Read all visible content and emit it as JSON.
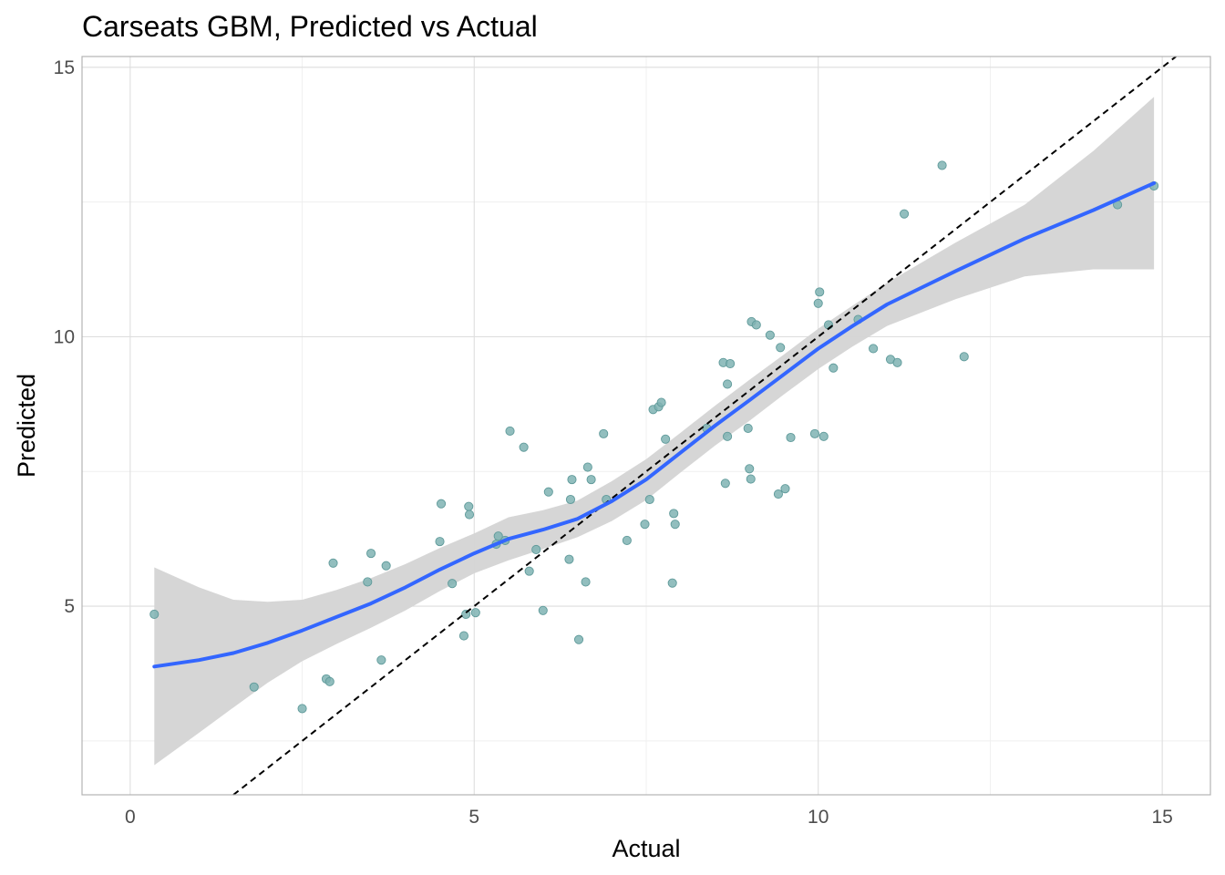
{
  "chart_data": {
    "type": "scatter",
    "title": "Carseats GBM, Predicted vs Actual",
    "xlabel": "Actual",
    "ylabel": "Predicted",
    "xlim": [
      -0.7,
      15.7
    ],
    "ylim": [
      1.5,
      15.2
    ],
    "x_ticks": [
      0,
      5,
      10,
      15
    ],
    "y_ticks": [
      5,
      10,
      15
    ],
    "x_minor_ticks": [
      2.5,
      7.5,
      12.5
    ],
    "y_minor_ticks": [
      2.5,
      7.5,
      12.5
    ],
    "grid": true,
    "legend": "none",
    "colors": {
      "point": "#7fb3b3",
      "point_edge": "#5f9a9a",
      "smooth": "#3366ff",
      "band": "#d4d4d4",
      "reference": "#000000",
      "grid": "#dedede",
      "panel_border": "#b3b3b3"
    },
    "reference_line": {
      "slope": 1,
      "intercept": 0,
      "style": "dashed"
    },
    "points": [
      [
        0.35,
        4.85
      ],
      [
        1.8,
        3.5
      ],
      [
        2.5,
        3.1
      ],
      [
        2.85,
        3.65
      ],
      [
        2.9,
        3.6
      ],
      [
        2.95,
        5.8
      ],
      [
        3.45,
        5.45
      ],
      [
        3.5,
        5.98
      ],
      [
        3.65,
        4.0
      ],
      [
        3.72,
        5.75
      ],
      [
        4.5,
        6.2
      ],
      [
        4.52,
        6.9
      ],
      [
        4.68,
        5.42
      ],
      [
        4.85,
        4.45
      ],
      [
        4.88,
        4.85
      ],
      [
        4.92,
        6.85
      ],
      [
        4.93,
        6.7
      ],
      [
        5.02,
        4.88
      ],
      [
        5.32,
        6.15
      ],
      [
        5.35,
        6.3
      ],
      [
        5.45,
        6.22
      ],
      [
        5.52,
        8.25
      ],
      [
        5.72,
        7.95
      ],
      [
        5.8,
        5.65
      ],
      [
        5.9,
        6.05
      ],
      [
        6.0,
        4.92
      ],
      [
        6.08,
        7.12
      ],
      [
        6.38,
        5.87
      ],
      [
        6.4,
        6.98
      ],
      [
        6.42,
        7.35
      ],
      [
        6.52,
        4.38
      ],
      [
        6.62,
        5.45
      ],
      [
        6.65,
        7.58
      ],
      [
        6.7,
        7.35
      ],
      [
        6.88,
        8.2
      ],
      [
        6.92,
        6.98
      ],
      [
        7.22,
        6.22
      ],
      [
        7.48,
        6.52
      ],
      [
        7.55,
        6.98
      ],
      [
        7.6,
        8.65
      ],
      [
        7.68,
        8.7
      ],
      [
        7.72,
        8.78
      ],
      [
        7.78,
        8.1
      ],
      [
        7.88,
        5.43
      ],
      [
        7.9,
        6.72
      ],
      [
        7.92,
        6.52
      ],
      [
        8.38,
        8.3
      ],
      [
        8.62,
        9.52
      ],
      [
        8.65,
        7.28
      ],
      [
        8.68,
        8.15
      ],
      [
        8.68,
        9.12
      ],
      [
        8.72,
        9.5
      ],
      [
        8.98,
        8.3
      ],
      [
        9.0,
        7.55
      ],
      [
        9.02,
        7.36
      ],
      [
        9.03,
        10.28
      ],
      [
        9.1,
        10.22
      ],
      [
        9.3,
        10.03
      ],
      [
        9.42,
        7.08
      ],
      [
        9.45,
        9.8
      ],
      [
        9.52,
        7.18
      ],
      [
        9.6,
        8.13
      ],
      [
        9.95,
        8.2
      ],
      [
        10.0,
        10.62
      ],
      [
        10.02,
        10.83
      ],
      [
        10.08,
        8.15
      ],
      [
        10.15,
        10.22
      ],
      [
        10.22,
        9.42
      ],
      [
        10.58,
        10.32
      ],
      [
        10.8,
        9.78
      ],
      [
        11.05,
        9.58
      ],
      [
        11.15,
        9.52
      ],
      [
        11.25,
        12.28
      ],
      [
        11.8,
        13.18
      ],
      [
        12.12,
        9.63
      ],
      [
        14.35,
        12.45
      ],
      [
        14.88,
        12.8
      ]
    ],
    "smooth_line": [
      [
        0.35,
        3.88
      ],
      [
        1.0,
        4.0
      ],
      [
        1.5,
        4.13
      ],
      [
        2.0,
        4.32
      ],
      [
        2.5,
        4.55
      ],
      [
        3.0,
        4.8
      ],
      [
        3.5,
        5.05
      ],
      [
        4.0,
        5.35
      ],
      [
        4.5,
        5.68
      ],
      [
        5.0,
        5.98
      ],
      [
        5.5,
        6.25
      ],
      [
        6.0,
        6.42
      ],
      [
        6.5,
        6.62
      ],
      [
        7.0,
        6.95
      ],
      [
        7.5,
        7.35
      ],
      [
        8.0,
        7.85
      ],
      [
        8.5,
        8.35
      ],
      [
        9.0,
        8.82
      ],
      [
        9.5,
        9.3
      ],
      [
        10.0,
        9.78
      ],
      [
        10.5,
        10.2
      ],
      [
        11.0,
        10.6
      ],
      [
        12.0,
        11.22
      ],
      [
        13.0,
        11.82
      ],
      [
        14.0,
        12.35
      ],
      [
        14.88,
        12.85
      ]
    ],
    "confidence_band_upper": [
      [
        0.35,
        5.72
      ],
      [
        1.0,
        5.35
      ],
      [
        1.5,
        5.12
      ],
      [
        2.0,
        5.08
      ],
      [
        2.5,
        5.12
      ],
      [
        3.0,
        5.3
      ],
      [
        3.5,
        5.52
      ],
      [
        4.0,
        5.78
      ],
      [
        4.5,
        6.08
      ],
      [
        5.0,
        6.35
      ],
      [
        5.5,
        6.65
      ],
      [
        6.0,
        6.78
      ],
      [
        6.5,
        6.96
      ],
      [
        7.0,
        7.32
      ],
      [
        7.5,
        7.73
      ],
      [
        8.0,
        8.22
      ],
      [
        8.5,
        8.72
      ],
      [
        9.0,
        9.2
      ],
      [
        9.5,
        9.67
      ],
      [
        10.0,
        10.15
      ],
      [
        10.5,
        10.58
      ],
      [
        11.0,
        11.0
      ],
      [
        12.0,
        11.75
      ],
      [
        13.0,
        12.45
      ],
      [
        14.0,
        13.45
      ],
      [
        14.88,
        14.45
      ]
    ],
    "confidence_band_lower": [
      [
        0.35,
        2.05
      ],
      [
        1.0,
        2.65
      ],
      [
        1.5,
        3.12
      ],
      [
        2.0,
        3.58
      ],
      [
        2.5,
        3.98
      ],
      [
        3.0,
        4.3
      ],
      [
        3.5,
        4.6
      ],
      [
        4.0,
        4.92
      ],
      [
        4.5,
        5.28
      ],
      [
        5.0,
        5.61
      ],
      [
        5.5,
        5.85
      ],
      [
        6.0,
        6.06
      ],
      [
        6.5,
        6.28
      ],
      [
        7.0,
        6.58
      ],
      [
        7.5,
        6.97
      ],
      [
        8.0,
        7.48
      ],
      [
        8.5,
        7.98
      ],
      [
        9.0,
        8.44
      ],
      [
        9.5,
        8.93
      ],
      [
        10.0,
        9.4
      ],
      [
        10.5,
        9.82
      ],
      [
        11.0,
        10.2
      ],
      [
        12.0,
        10.7
      ],
      [
        13.0,
        11.12
      ],
      [
        14.0,
        11.25
      ],
      [
        14.88,
        11.25
      ]
    ]
  }
}
